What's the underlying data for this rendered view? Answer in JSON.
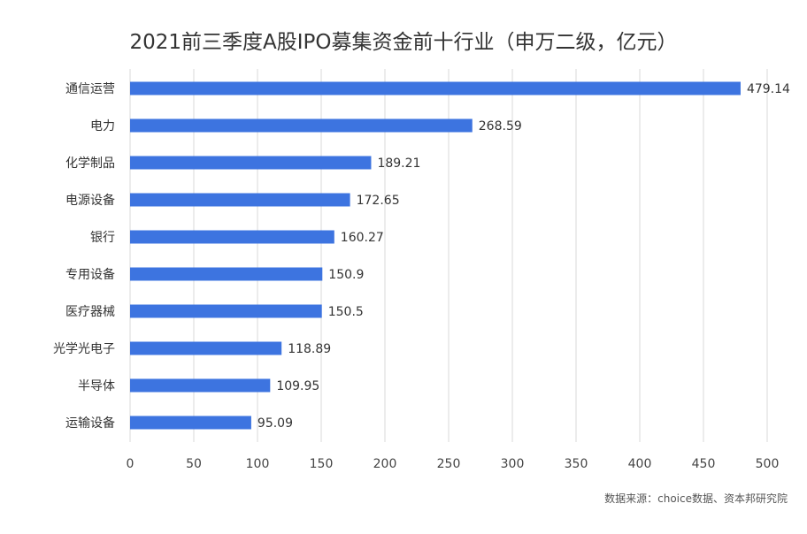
{
  "chart_data": {
    "type": "bar",
    "orientation": "horizontal",
    "title": "2021前三季度A股IPO募集资金前十行业（申万二级，亿元）",
    "source": "数据来源：choice数据、资本邦研究院",
    "categories": [
      "通信运营",
      "电力",
      "化学制品",
      "电源设备",
      "银行",
      "专用设备",
      "医疗器械",
      "光学光电子",
      "半导体",
      "运输设备"
    ],
    "values": [
      479.14,
      268.59,
      189.21,
      172.65,
      160.27,
      150.9,
      150.5,
      118.89,
      109.95,
      95.09
    ],
    "value_labels": [
      "479.14",
      "268.59",
      "189.21",
      "172.65",
      "160.27",
      "150.9",
      "150.5",
      "118.89",
      "109.95",
      "95.09"
    ],
    "xlim": [
      0,
      500
    ],
    "x_ticks": [
      "0",
      "50",
      "100",
      "150",
      "200",
      "250",
      "300",
      "350",
      "400",
      "450",
      "500"
    ],
    "grid": true,
    "bar_color": "#3d74e0",
    "grid_color": "#d9d9d9"
  }
}
